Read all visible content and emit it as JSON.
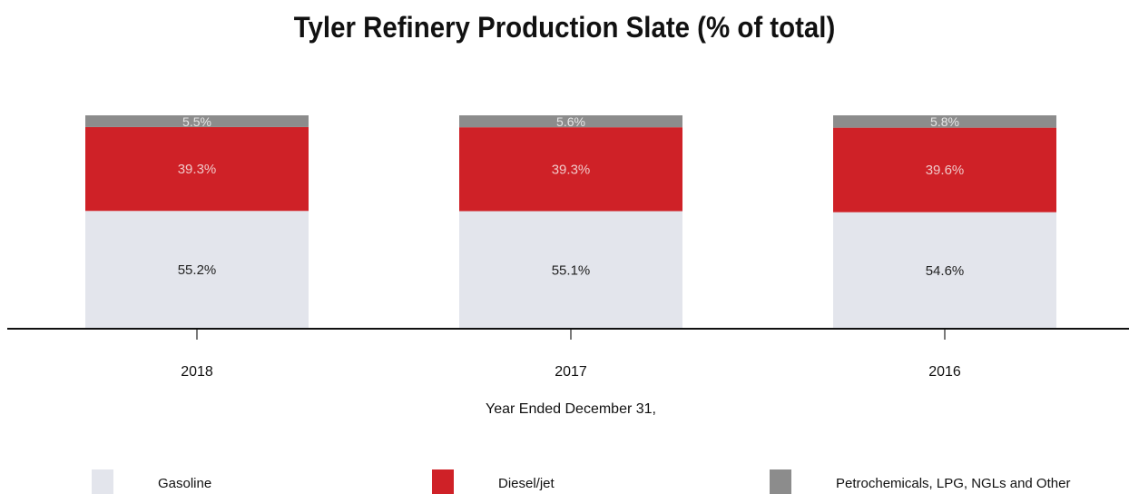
{
  "chart_data": {
    "type": "bar",
    "stacked": true,
    "title": "Tyler Refinery Production Slate (% of total)",
    "xlabel": "Year Ended December 31,",
    "ylabel": "",
    "categories": [
      "2018",
      "2017",
      "2016"
    ],
    "series": [
      {
        "name": "Gasoline",
        "values": [
          55.2,
          55.1,
          54.6
        ],
        "labels": [
          "55.2%",
          "55.1%",
          "54.6%"
        ],
        "color": "#e3e5ec",
        "label_color": "#222222"
      },
      {
        "name": "Diesel/jet",
        "values": [
          39.3,
          39.3,
          39.6
        ],
        "labels": [
          "39.3%",
          "39.3%",
          "39.6%"
        ],
        "color": "#cf2127",
        "label_color": "#f0c8c8"
      },
      {
        "name": "Petrochemicals, LPG, NGLs and Other",
        "values": [
          5.5,
          5.6,
          5.8
        ],
        "labels": [
          "5.5%",
          "5.6%",
          "5.8%"
        ],
        "color": "#8c8c8c",
        "label_color": "#e6e6e6"
      }
    ],
    "ylim": [
      0,
      100
    ],
    "legend_position": "bottom",
    "grid": false
  }
}
